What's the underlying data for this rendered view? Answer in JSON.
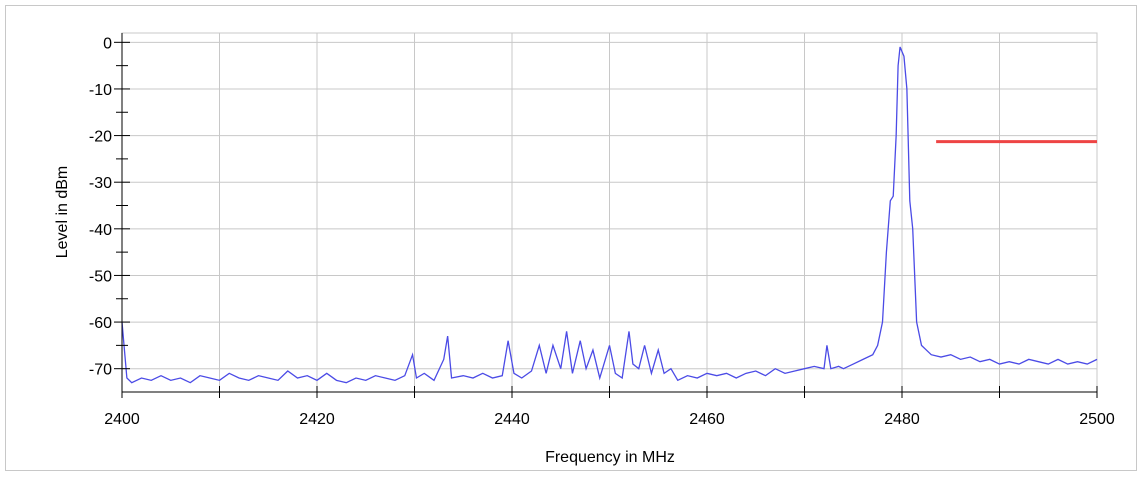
{
  "chart_data": {
    "type": "line",
    "xlabel": "Frequency in MHz",
    "ylabel": "Level in dBm",
    "xlim": [
      2400,
      2500
    ],
    "xticks": [
      2400,
      2420,
      2440,
      2460,
      2480,
      2500
    ],
    "xminor_ticks": [
      2410,
      2430,
      2450,
      2470,
      2490
    ],
    "ylim": [
      -75,
      2
    ],
    "yticks": [
      0,
      -10,
      -20,
      -30,
      -40,
      -50,
      -60,
      -70
    ],
    "yminor_ticks": [
      -5,
      -15,
      -25,
      -35,
      -45,
      -55,
      -65
    ],
    "grid": true,
    "series": [
      {
        "color": "#4b4be6",
        "x": [
          2400,
          2400.5,
          2401,
          2402,
          2403,
          2404,
          2405,
          2406,
          2407,
          2408,
          2409,
          2410,
          2411,
          2412,
          2413,
          2414,
          2415,
          2416,
          2417,
          2418,
          2419,
          2420,
          2421,
          2422,
          2423,
          2424,
          2425,
          2426,
          2427,
          2428,
          2429,
          2429.8,
          2430.2,
          2431,
          2432,
          2433,
          2433.4,
          2433.8,
          2435,
          2436,
          2437,
          2438,
          2439,
          2439.6,
          2440.2,
          2441,
          2442,
          2442.8,
          2443.5,
          2444.2,
          2445,
          2445.6,
          2446.2,
          2447,
          2447.6,
          2448.3,
          2449,
          2450,
          2450.6,
          2451.3,
          2452,
          2452.4,
          2453,
          2453.6,
          2454.3,
          2455,
          2455.6,
          2456.3,
          2457,
          2458,
          2459,
          2460,
          2461,
          2462,
          2463,
          2464,
          2465,
          2466,
          2467,
          2468,
          2469,
          2470,
          2471,
          2472,
          2472.3,
          2472.7,
          2473.5,
          2474,
          2475,
          2476,
          2477,
          2477.5,
          2478,
          2478.4,
          2478.8,
          2479.1,
          2479.4,
          2479.6,
          2479.8,
          2480.0,
          2480.2,
          2480.5,
          2480.8,
          2481.1,
          2481.5,
          2482,
          2482.5,
          2483,
          2484,
          2485,
          2486,
          2487,
          2488,
          2489,
          2490,
          2491,
          2492,
          2493,
          2494,
          2495,
          2496,
          2497,
          2498,
          2499,
          2500
        ],
        "values": [
          -60,
          -72,
          -73,
          -72,
          -72.5,
          -71.5,
          -72.5,
          -72,
          -73,
          -71.5,
          -72,
          -72.5,
          -71,
          -72,
          -72.5,
          -71.5,
          -72,
          -72.5,
          -70.5,
          -72,
          -71.5,
          -72.5,
          -71,
          -72.5,
          -73,
          -72,
          -72.5,
          -71.5,
          -72,
          -72.5,
          -71.5,
          -67,
          -72,
          -71,
          -72.5,
          -68,
          -63,
          -72,
          -71.5,
          -72,
          -71,
          -72,
          -71.5,
          -64,
          -71,
          -72,
          -70.5,
          -65,
          -71,
          -65,
          -70,
          -62,
          -71,
          -64,
          -70,
          -66,
          -72,
          -65,
          -71,
          -72,
          -62,
          -69,
          -70,
          -65,
          -71,
          -66,
          -71,
          -70,
          -72.5,
          -71.5,
          -72,
          -71,
          -71.5,
          -71,
          -72,
          -71,
          -70.5,
          -71.5,
          -70,
          -71,
          -70.5,
          -70,
          -69.5,
          -70,
          -65,
          -70,
          -69.5,
          -70,
          -69,
          -68,
          -67,
          -65,
          -60,
          -45,
          -34,
          -33,
          -20,
          -5,
          -1,
          -2,
          -3,
          -10,
          -34,
          -40,
          -60,
          -65,
          -66,
          -67,
          -67.5,
          -67,
          -68,
          -67.5,
          -68.5,
          -68,
          -69,
          -68.5,
          -69,
          -68,
          -68.5,
          -69,
          -68,
          -69,
          -68.5,
          -69,
          -68
        ]
      },
      {
        "color": "#ee4444",
        "x": [
          2483.5,
          2500
        ],
        "values": [
          -21.3,
          -21.3
        ]
      }
    ]
  }
}
